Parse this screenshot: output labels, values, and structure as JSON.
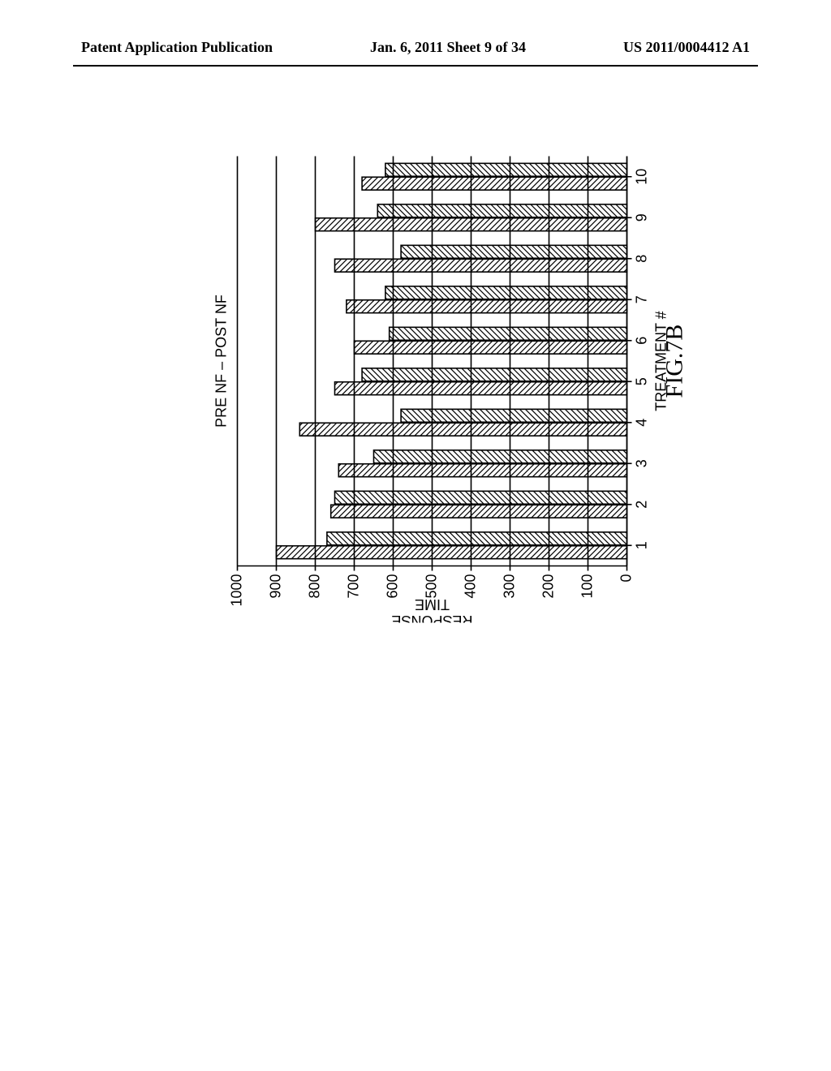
{
  "header": {
    "left": "Patent Application Publication",
    "center": "Jan. 6, 2011  Sheet 9 of 34",
    "right": "US 2011/0004412 A1"
  },
  "chart": {
    "type": "grouped-bar",
    "title": "PRE NF  –  POST NF",
    "ylabel": "RESPONSE\nTIME",
    "xlabel": "TREATMENT #",
    "fig_label": "FIG.7B",
    "ylim": [
      0,
      1000
    ],
    "ytick_step": 100,
    "yticks": [
      0,
      100,
      200,
      300,
      400,
      500,
      600,
      700,
      800,
      900,
      1000
    ],
    "categories": [
      "1",
      "2",
      "3",
      "4",
      "5",
      "6",
      "7",
      "8",
      "9",
      "10"
    ],
    "series": [
      {
        "name": "PRE NF",
        "pattern": "hatch-nw",
        "values": [
          900,
          760,
          740,
          840,
          750,
          700,
          720,
          750,
          800,
          680
        ]
      },
      {
        "name": "POST NF",
        "pattern": "hatch-ne",
        "values": [
          770,
          750,
          650,
          580,
          680,
          610,
          620,
          580,
          640,
          620
        ]
      }
    ],
    "bar_group_gap": 0.35,
    "bar_pair_gap": 0.02,
    "colors": {
      "stroke": "#000000",
      "background": "#ffffff",
      "grid": "#000000"
    },
    "stroke_width": 1.6,
    "hatch_spacing": 7,
    "title_fontsize": 18,
    "label_fontsize": 18,
    "tick_fontsize": 18,
    "fig_fontsize": 30
  }
}
